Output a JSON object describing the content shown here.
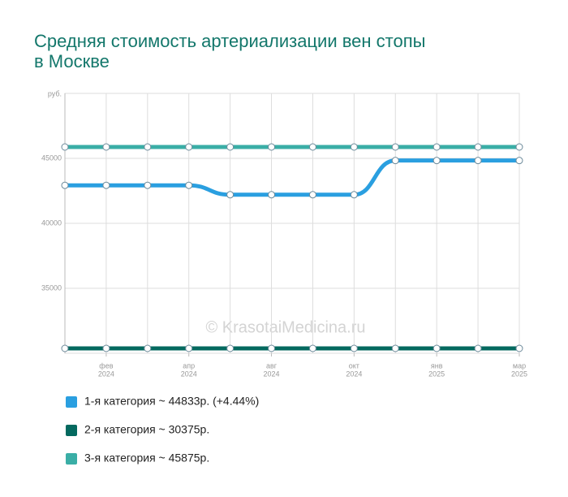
{
  "chart_data": {
    "type": "line",
    "title": [
      "Средняя стоимость артериализации вен стопы",
      "в Москве"
    ],
    "y_unit": "руб.",
    "watermark": "© KrasotaiMedicina.ru",
    "categories": [
      null,
      "фев",
      null,
      "апр",
      null,
      "авг",
      null,
      "окт",
      null,
      "янв",
      null,
      "мар"
    ],
    "years": [
      null,
      "2024",
      null,
      "2024",
      null,
      "2024",
      null,
      "2024",
      null,
      "2025",
      null,
      "2025"
    ],
    "ylim": [
      30000,
      50000
    ],
    "yticks": [
      35000,
      40000,
      45000
    ],
    "grid": true,
    "series": [
      {
        "name": "1-я категория ~ 44833р. (+4.44%)",
        "color": "#2a9fe0",
        "values": [
          42925,
          42925,
          42925,
          42925,
          42200,
          42200,
          42200,
          42200,
          44833,
          44833,
          44833,
          44833
        ]
      },
      {
        "name": "2-я категория ~ 30375р.",
        "color": "#04695f",
        "values": [
          30375,
          30375,
          30375,
          30375,
          30375,
          30375,
          30375,
          30375,
          30375,
          30375,
          30375,
          30375
        ]
      },
      {
        "name": "3-я категория ~ 45875р.",
        "color": "#3aaea6",
        "values": [
          45875,
          45875,
          45875,
          45875,
          45875,
          45875,
          45875,
          45875,
          45875,
          45875,
          45875,
          45875
        ]
      }
    ]
  }
}
